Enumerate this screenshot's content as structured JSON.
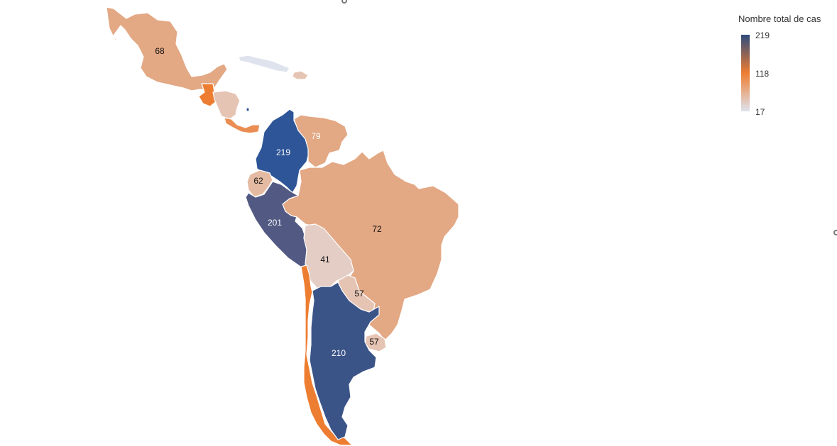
{
  "legend": {
    "title": "Nombre total de cas",
    "max_label": "219",
    "mid_label": "118",
    "min_label": "17",
    "color_max": "#2f4b7c",
    "color_mid": "#ed7d31",
    "color_min": "#dfe3ee"
  },
  "map": {
    "background": "#ffffff",
    "regions": [
      {
        "id": "mexico",
        "value": 68,
        "label": "68",
        "fill": "#e3a884"
      },
      {
        "id": "guatemala",
        "value": 118,
        "label": "",
        "fill": "#ed7d31"
      },
      {
        "id": "honduras",
        "value": 32,
        "label": "",
        "fill": "#e6c4b4"
      },
      {
        "id": "panama",
        "value": 104,
        "label": "",
        "fill": "#ea8d52"
      },
      {
        "id": "colombia",
        "value": 219,
        "label": "219",
        "fill": "#2d5597"
      },
      {
        "id": "venezuela",
        "value": 79,
        "label": "79",
        "fill": "#e3a884"
      },
      {
        "id": "ecuador",
        "value": 62,
        "label": "62",
        "fill": "#e4bba2"
      },
      {
        "id": "peru",
        "value": 201,
        "label": "201",
        "fill": "#525a83"
      },
      {
        "id": "brazil",
        "value": 72,
        "label": "72",
        "fill": "#e3a884"
      },
      {
        "id": "bolivia",
        "value": 41,
        "label": "41",
        "fill": "#e3cdc4"
      },
      {
        "id": "paraguay",
        "value": 57,
        "label": "57",
        "fill": "#e6c4b4"
      },
      {
        "id": "uruguay",
        "value": 57,
        "label": "57",
        "fill": "#e6c4b4"
      },
      {
        "id": "argentina",
        "value": 210,
        "label": "210",
        "fill": "#3b5488"
      },
      {
        "id": "chile",
        "value": 118,
        "label": "",
        "fill": "#ed7d31"
      },
      {
        "id": "cuba",
        "value": 17,
        "label": "",
        "fill": "#dfe3ee"
      },
      {
        "id": "dominican-republic",
        "value": 60,
        "label": "",
        "fill": "#e6c4b4"
      },
      {
        "id": "caribbean-dot",
        "value": 219,
        "label": "",
        "fill": "#2d5597"
      }
    ]
  }
}
